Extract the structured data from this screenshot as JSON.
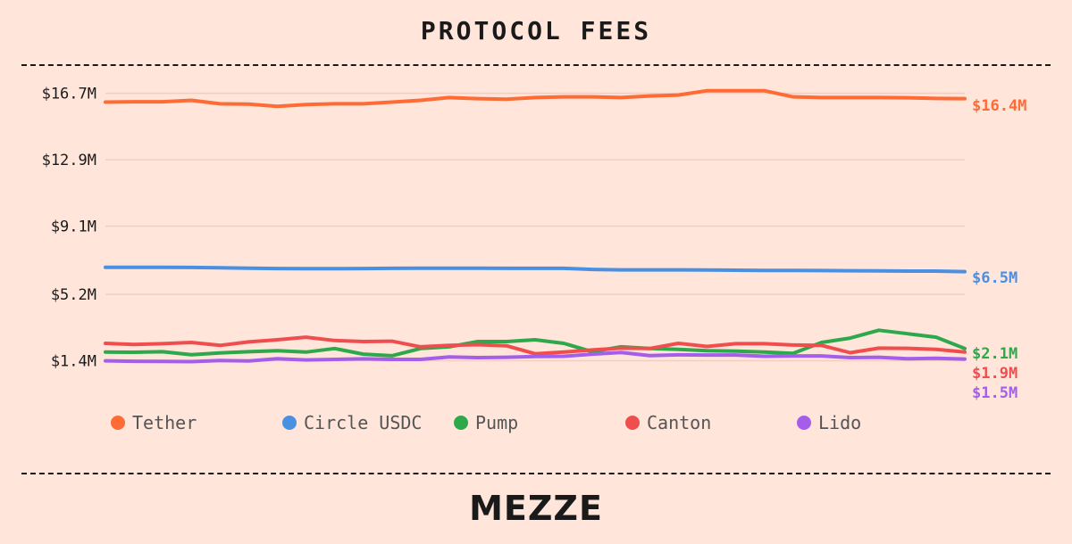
{
  "header": {
    "title": "PROTOCOL FEES"
  },
  "footer": {
    "logo": "MEZZE"
  },
  "chart_data": {
    "type": "line",
    "title": "PROTOCOL FEES",
    "xlabel": "",
    "ylabel": "",
    "ylim": [
      0,
      17.2
    ],
    "y_ticks": [
      {
        "value": 1.4,
        "label": "$1.4M"
      },
      {
        "value": 5.2,
        "label": "$5.2M"
      },
      {
        "value": 9.1,
        "label": "$9.1M"
      },
      {
        "value": 12.9,
        "label": "$12.9M"
      },
      {
        "value": 16.7,
        "label": "$16.7M"
      }
    ],
    "grid": true,
    "legend_position": "bottom",
    "series": [
      {
        "name": "Tether",
        "color": "#FF6B35",
        "end_label": "$16.4M",
        "values": [
          16.2,
          16.22,
          16.22,
          16.3,
          16.1,
          16.08,
          15.96,
          16.06,
          16.1,
          16.1,
          16.2,
          16.3,
          16.46,
          16.4,
          16.36,
          16.46,
          16.5,
          16.5,
          16.46,
          16.55,
          16.6,
          16.85,
          16.85,
          16.85,
          16.5,
          16.46,
          16.46,
          16.46,
          16.45,
          16.41,
          16.4
        ]
      },
      {
        "name": "Circle USDC",
        "color": "#4A90E2",
        "end_label": "$6.5M",
        "values": [
          6.75,
          6.75,
          6.75,
          6.74,
          6.72,
          6.7,
          6.68,
          6.67,
          6.67,
          6.68,
          6.69,
          6.7,
          6.7,
          6.7,
          6.69,
          6.69,
          6.69,
          6.63,
          6.6,
          6.6,
          6.6,
          6.59,
          6.58,
          6.57,
          6.57,
          6.56,
          6.55,
          6.54,
          6.53,
          6.53,
          6.5
        ]
      },
      {
        "name": "Pump",
        "color": "#2DA84A",
        "end_label": "$2.1M",
        "values": [
          1.9,
          1.89,
          1.92,
          1.75,
          1.85,
          1.92,
          1.98,
          1.9,
          2.1,
          1.78,
          1.69,
          2.1,
          2.2,
          2.5,
          2.5,
          2.6,
          2.4,
          1.92,
          2.2,
          2.1,
          2.05,
          1.98,
          1.95,
          1.9,
          1.82,
          2.45,
          2.7,
          3.15,
          2.95,
          2.75,
          2.1
        ]
      },
      {
        "name": "Canton",
        "color": "#F04E4E",
        "end_label": "$1.9M",
        "values": [
          2.4,
          2.33,
          2.38,
          2.45,
          2.28,
          2.48,
          2.6,
          2.75,
          2.56,
          2.5,
          2.52,
          2.2,
          2.28,
          2.32,
          2.26,
          1.8,
          1.9,
          2.02,
          2.12,
          2.1,
          2.4,
          2.22,
          2.38,
          2.38,
          2.3,
          2.28,
          1.86,
          2.12,
          2.11,
          2.05,
          1.9
        ]
      },
      {
        "name": "Lido",
        "color": "#A55EEA",
        "end_label": "$1.5M",
        "values": [
          1.4,
          1.37,
          1.36,
          1.35,
          1.42,
          1.39,
          1.52,
          1.45,
          1.48,
          1.51,
          1.48,
          1.48,
          1.62,
          1.58,
          1.6,
          1.65,
          1.66,
          1.78,
          1.88,
          1.7,
          1.74,
          1.73,
          1.73,
          1.66,
          1.68,
          1.68,
          1.58,
          1.6,
          1.52,
          1.54,
          1.5
        ]
      }
    ]
  }
}
